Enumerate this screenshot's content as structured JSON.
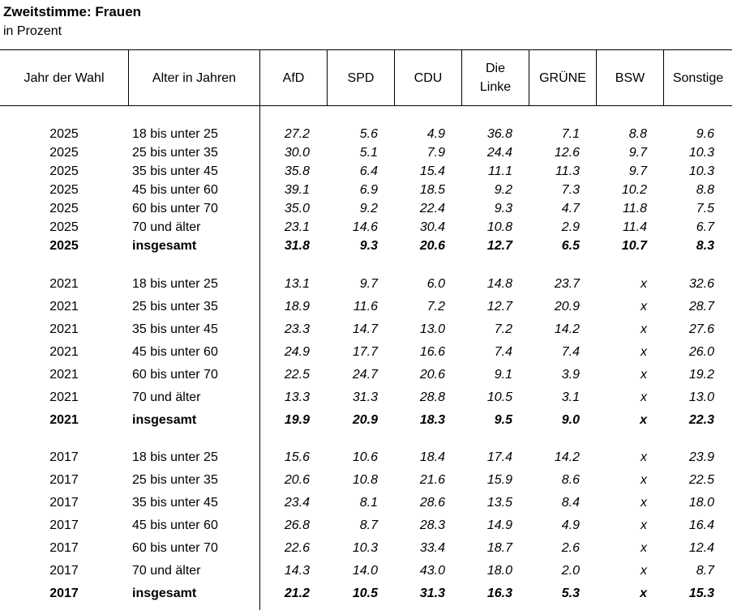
{
  "title": "Zweitstimme: Frauen",
  "subtitle": "in Prozent",
  "columns": [
    "Jahr der Wahl",
    "Alter in Jahren",
    "AfD",
    "SPD",
    "CDU",
    "Die Linke",
    "GRÜNE",
    "BSW",
    "Sonstige"
  ],
  "columns_display": {
    "die_linke_line1": "Die",
    "die_linke_line2": "Linke"
  },
  "groups": [
    {
      "year": "2025",
      "rows": [
        {
          "year": "2025",
          "age": "18 bis unter 25",
          "values": [
            "27.2",
            "5.6",
            "4.9",
            "36.8",
            "7.1",
            "8.8",
            "9.6"
          ]
        },
        {
          "year": "2025",
          "age": "25 bis unter 35",
          "values": [
            "30.0",
            "5.1",
            "7.9",
            "24.4",
            "12.6",
            "9.7",
            "10.3"
          ]
        },
        {
          "year": "2025",
          "age": "35 bis unter 45",
          "values": [
            "35.8",
            "6.4",
            "15.4",
            "11.1",
            "11.3",
            "9.7",
            "10.3"
          ]
        },
        {
          "year": "2025",
          "age": "45 bis unter 60",
          "values": [
            "39.1",
            "6.9",
            "18.5",
            "9.2",
            "7.3",
            "10.2",
            "8.8"
          ]
        },
        {
          "year": "2025",
          "age": "60 bis unter 70",
          "values": [
            "35.0",
            "9.2",
            "22.4",
            "9.3",
            "4.7",
            "11.8",
            "7.5"
          ]
        },
        {
          "year": "2025",
          "age": "70 und älter",
          "values": [
            "23.1",
            "14.6",
            "30.4",
            "10.8",
            "2.9",
            "11.4",
            "6.7"
          ]
        },
        {
          "year": "2025",
          "age": "insgesamt",
          "values": [
            "31.8",
            "9.3",
            "20.6",
            "12.7",
            "6.5",
            "10.7",
            "8.3"
          ],
          "total": true
        }
      ]
    },
    {
      "year": "2021",
      "rows": [
        {
          "year": "2021",
          "age": "18 bis unter 25",
          "values": [
            "13.1",
            "9.7",
            "6.0",
            "14.8",
            "23.7",
            "x",
            "32.6"
          ]
        },
        {
          "year": "2021",
          "age": "25 bis unter 35",
          "values": [
            "18.9",
            "11.6",
            "7.2",
            "12.7",
            "20.9",
            "x",
            "28.7"
          ]
        },
        {
          "year": "2021",
          "age": "35 bis unter 45",
          "values": [
            "23.3",
            "14.7",
            "13.0",
            "7.2",
            "14.2",
            "x",
            "27.6"
          ]
        },
        {
          "year": "2021",
          "age": "45 bis unter 60",
          "values": [
            "24.9",
            "17.7",
            "16.6",
            "7.4",
            "7.4",
            "x",
            "26.0"
          ]
        },
        {
          "year": "2021",
          "age": "60 bis unter 70",
          "values": [
            "22.5",
            "24.7",
            "20.6",
            "9.1",
            "3.9",
            "x",
            "19.2"
          ]
        },
        {
          "year": "2021",
          "age": "70 und älter",
          "values": [
            "13.3",
            "31.3",
            "28.8",
            "10.5",
            "3.1",
            "x",
            "13.0"
          ]
        },
        {
          "year": "2021",
          "age": "insgesamt",
          "values": [
            "19.9",
            "20.9",
            "18.3",
            "9.5",
            "9.0",
            "x",
            "22.3"
          ],
          "total": true
        }
      ]
    },
    {
      "year": "2017",
      "rows": [
        {
          "year": "2017",
          "age": "18 bis unter 25",
          "values": [
            "15.6",
            "10.6",
            "18.4",
            "17.4",
            "14.2",
            "x",
            "23.9"
          ]
        },
        {
          "year": "2017",
          "age": "25 bis unter 35",
          "values": [
            "20.6",
            "10.8",
            "21.6",
            "15.9",
            "8.6",
            "x",
            "22.5"
          ]
        },
        {
          "year": "2017",
          "age": "35 bis unter 45",
          "values": [
            "23.4",
            "8.1",
            "28.6",
            "13.5",
            "8.4",
            "x",
            "18.0"
          ]
        },
        {
          "year": "2017",
          "age": "45 bis unter 60",
          "values": [
            "26.8",
            "8.7",
            "28.3",
            "14.9",
            "4.9",
            "x",
            "16.4"
          ]
        },
        {
          "year": "2017",
          "age": "60 bis unter 70",
          "values": [
            "22.6",
            "10.3",
            "33.4",
            "18.7",
            "2.6",
            "x",
            "12.4"
          ]
        },
        {
          "year": "2017",
          "age": "70 und älter",
          "values": [
            "14.3",
            "14.0",
            "43.0",
            "18.0",
            "2.0",
            "x",
            "8.7"
          ]
        },
        {
          "year": "2017",
          "age": "insgesamt",
          "values": [
            "21.2",
            "10.5",
            "31.3",
            "16.3",
            "5.3",
            "x",
            "15.3"
          ],
          "total": true
        }
      ]
    }
  ]
}
